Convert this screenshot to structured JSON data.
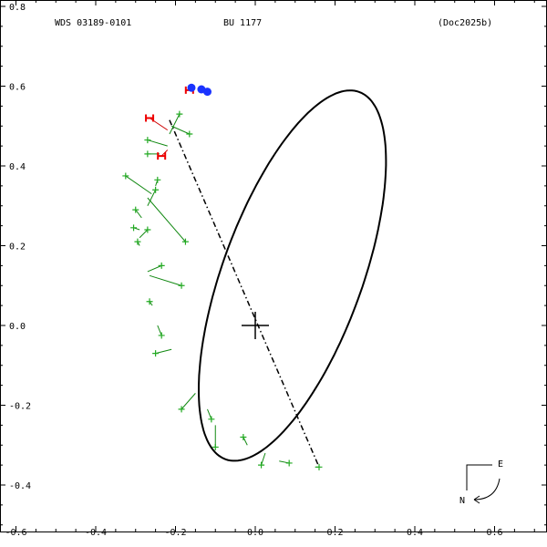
{
  "chart_data": {
    "type": "scatter",
    "header": {
      "left": "WDS 03189-0101",
      "center": "BU 1177",
      "right": "(Doc2025b)"
    },
    "xlim": [
      -0.6,
      0.72
    ],
    "ylim": [
      -0.52,
      0.82
    ],
    "x_ticks": [
      "-0.6",
      "-0.4",
      "-0.2",
      "0.0",
      "0.2",
      "0.4",
      "0.6"
    ],
    "y_ticks": [
      "0.8",
      "0.6",
      "0.4",
      "0.2",
      "0.0",
      "-0.2",
      "-0.4"
    ],
    "orbit": {
      "center": [
        0.093,
        0.125
      ],
      "semi_axes": [
        0.175,
        0.49
      ],
      "rotation_deg": -20
    },
    "line_of_nodes": [
      [
        -0.215,
        0.515
      ],
      [
        0.16,
        -0.355
      ]
    ],
    "primary": [
      0.0,
      0.0
    ],
    "green_measures": [
      {
        "obs": [
          -0.19,
          0.53
        ],
        "calc": [
          -0.215,
          0.48
        ]
      },
      {
        "obs": [
          -0.165,
          0.48
        ],
        "calc": [
          -0.21,
          0.5
        ]
      },
      {
        "obs": [
          -0.27,
          0.465
        ],
        "calc": [
          -0.22,
          0.45
        ]
      },
      {
        "obs": [
          -0.27,
          0.43
        ],
        "calc": [
          -0.24,
          0.43
        ]
      },
      {
        "obs": [
          -0.325,
          0.375
        ],
        "calc": [
          -0.26,
          0.33
        ]
      },
      {
        "obs": [
          -0.245,
          0.365
        ],
        "calc": [
          -0.25,
          0.35
        ]
      },
      {
        "obs": [
          -0.175,
          0.21
        ],
        "calc": [
          -0.27,
          0.32
        ]
      },
      {
        "obs": [
          -0.25,
          0.34
        ],
        "calc": [
          -0.27,
          0.3
        ]
      },
      {
        "obs": [
          -0.3,
          0.29
        ],
        "calc": [
          -0.285,
          0.27
        ]
      },
      {
        "obs": [
          -0.305,
          0.245
        ],
        "calc": [
          -0.29,
          0.24
        ]
      },
      {
        "obs": [
          -0.27,
          0.24
        ],
        "calc": [
          -0.29,
          0.22
        ]
      },
      {
        "obs": [
          -0.295,
          0.21
        ],
        "calc": [
          -0.29,
          0.2
        ]
      },
      {
        "obs": [
          -0.235,
          0.15
        ],
        "calc": [
          -0.27,
          0.135
        ]
      },
      {
        "obs": [
          -0.185,
          0.1
        ],
        "calc": [
          -0.265,
          0.125
        ]
      },
      {
        "obs": [
          -0.265,
          0.06
        ],
        "calc": [
          -0.258,
          0.05
        ]
      },
      {
        "obs": [
          -0.235,
          -0.025
        ],
        "calc": [
          -0.245,
          0.0
        ]
      },
      {
        "obs": [
          -0.25,
          -0.07
        ],
        "calc": [
          -0.21,
          -0.06
        ]
      },
      {
        "obs": [
          -0.185,
          -0.21
        ],
        "calc": [
          -0.15,
          -0.17
        ]
      },
      {
        "obs": [
          -0.11,
          -0.235
        ],
        "calc": [
          -0.12,
          -0.21
        ]
      },
      {
        "obs": [
          -0.1,
          -0.305
        ],
        "calc": [
          -0.1,
          -0.25
        ]
      },
      {
        "obs": [
          -0.03,
          -0.28
        ],
        "calc": [
          -0.02,
          -0.3
        ]
      },
      {
        "obs": [
          0.015,
          -0.35
        ],
        "calc": [
          0.025,
          -0.32
        ]
      },
      {
        "obs": [
          0.085,
          -0.345
        ],
        "calc": [
          0.06,
          -0.34
        ]
      },
      {
        "obs": [
          0.16,
          -0.355
        ],
        "calc": [
          0.15,
          -0.355
        ]
      }
    ],
    "red_measures": [
      {
        "label": "H",
        "obs": [
          -0.265,
          0.52
        ],
        "calc": [
          -0.22,
          0.49
        ]
      },
      {
        "label": "H",
        "obs": [
          -0.235,
          0.425
        ],
        "calc": [
          -0.22,
          0.44
        ]
      },
      {
        "label": "H",
        "obs": [
          -0.165,
          0.59
        ],
        "calc": [
          -0.16,
          0.595
        ]
      }
    ],
    "blue_points": [
      [
        -0.16,
        0.596
      ],
      [
        -0.135,
        0.592
      ],
      [
        -0.12,
        0.586
      ]
    ],
    "compass": {
      "east": "E",
      "north": "N"
    }
  }
}
